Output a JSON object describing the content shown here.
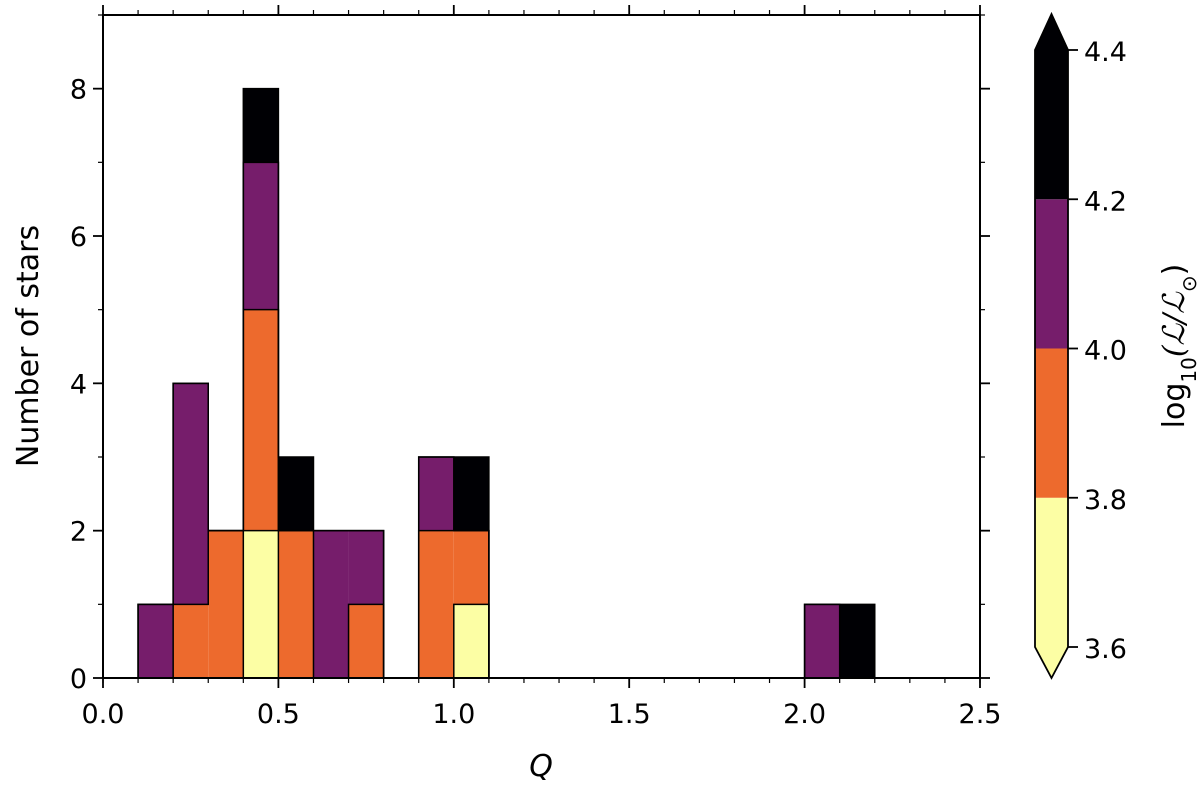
{
  "chart_data": {
    "type": "bar",
    "stacked": true,
    "xlabel": "Q",
    "ylabel": "Number of stars",
    "xlim": [
      0.0,
      2.5
    ],
    "ylim": [
      0,
      9
    ],
    "x_ticks": [
      "0.0",
      "0.5",
      "1.0",
      "1.5",
      "2.0",
      "2.5"
    ],
    "y_ticks": [
      "0",
      "2",
      "4",
      "6",
      "8"
    ],
    "grid": false,
    "bin_width": 0.1,
    "bin_starts": [
      0.0,
      0.1,
      0.2,
      0.3,
      0.4,
      0.5,
      0.6,
      0.7,
      0.8,
      0.9,
      1.0,
      1.1,
      1.2,
      1.3,
      1.4,
      1.5,
      1.6,
      1.7,
      1.8,
      1.9,
      2.0,
      2.1,
      2.2,
      2.3
    ],
    "series": [
      {
        "range": "3.6-3.8",
        "color": "#fcfea4",
        "values": [
          0,
          0,
          0,
          0,
          2,
          0,
          0,
          0,
          0,
          0,
          1,
          0,
          0,
          0,
          0,
          0,
          0,
          0,
          0,
          0,
          0,
          0,
          0,
          0
        ]
      },
      {
        "range": "3.8-4.0",
        "color": "#ed6a2d",
        "values": [
          0,
          0,
          1,
          2,
          3,
          2,
          0,
          1,
          0,
          2,
          1,
          0,
          0,
          0,
          0,
          0,
          0,
          0,
          0,
          0,
          0,
          0,
          0,
          0
        ]
      },
      {
        "range": "4.0-4.2",
        "color": "#761d6b",
        "values": [
          0,
          1,
          3,
          0,
          2,
          0,
          2,
          1,
          0,
          1,
          0,
          0,
          0,
          0,
          0,
          0,
          0,
          0,
          0,
          0,
          1,
          0,
          0,
          0
        ]
      },
      {
        "range": "4.2-4.4",
        "color": "#000004",
        "values": [
          0,
          0,
          0,
          0,
          1,
          1,
          0,
          0,
          0,
          0,
          1,
          0,
          0,
          0,
          0,
          0,
          0,
          0,
          0,
          0,
          0,
          1,
          0,
          0
        ]
      }
    ],
    "colorbar": {
      "label_prefix": "log",
      "label_subscript": "10",
      "label_expr": "(ℒ/ℒ",
      "label_suffix": "⊙",
      "label_close": ")",
      "ticks": [
        "3.6",
        "3.8",
        "4.0",
        "4.2",
        "4.4"
      ],
      "levels": [
        3.6,
        3.8,
        4.0,
        4.2,
        4.4
      ],
      "colors": [
        "#fcfea4",
        "#ed6a2d",
        "#761d6b",
        "#000004"
      ],
      "extend_min_color": "#fcfea4",
      "extend_max_color": "#000004"
    }
  }
}
